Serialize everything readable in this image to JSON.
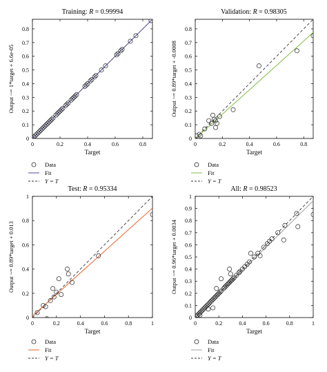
{
  "chart_data": [
    {
      "type": "scatter",
      "title": "Training: R = 0.99994",
      "title_prefix": "Training: ",
      "title_italic": "R",
      "title_value": " = 0.99994",
      "xlabel": "Target",
      "ylabel": "Output ~= 1*target + 6.6e-05",
      "xlim": [
        0,
        0.87
      ],
      "ylim": [
        0,
        0.87
      ],
      "xticks": [
        "0",
        "0.2",
        "0.4",
        "0.6",
        "0.8"
      ],
      "xtick_values": [
        0,
        0.2,
        0.4,
        0.6,
        0.8
      ],
      "yticks": [
        "0",
        "0.1",
        "0.2",
        "0.3",
        "0.4",
        "0.5",
        "0.6",
        "0.7",
        "0.8"
      ],
      "ytick_values": [
        0,
        0.1,
        0.2,
        0.3,
        0.4,
        0.5,
        0.6,
        0.7,
        0.8
      ],
      "fit": {
        "slope": 1.0,
        "intercept": 6.6e-05,
        "color": "#5b5ea6"
      },
      "identity_line": true,
      "grid": false,
      "legend": [
        {
          "label": "Data",
          "marker": "circle"
        },
        {
          "label": "Fit",
          "marker": "line",
          "color": "#5b5ea6"
        },
        {
          "label": "Y = T",
          "marker": "dashed"
        }
      ],
      "x": [
        0.01,
        0.02,
        0.03,
        0.04,
        0.05,
        0.06,
        0.07,
        0.08,
        0.09,
        0.1,
        0.11,
        0.12,
        0.13,
        0.14,
        0.15,
        0.17,
        0.18,
        0.19,
        0.2,
        0.21,
        0.22,
        0.24,
        0.25,
        0.26,
        0.28,
        0.29,
        0.3,
        0.31,
        0.32,
        0.38,
        0.39,
        0.4,
        0.42,
        0.43,
        0.45,
        0.46,
        0.5,
        0.53,
        0.61,
        0.62,
        0.64,
        0.65,
        0.71,
        0.75,
        0.86
      ],
      "y": [
        0.01,
        0.02,
        0.03,
        0.04,
        0.05,
        0.06,
        0.07,
        0.08,
        0.09,
        0.1,
        0.11,
        0.12,
        0.13,
        0.14,
        0.15,
        0.17,
        0.18,
        0.19,
        0.2,
        0.21,
        0.22,
        0.24,
        0.25,
        0.26,
        0.28,
        0.29,
        0.3,
        0.31,
        0.32,
        0.38,
        0.39,
        0.4,
        0.42,
        0.43,
        0.45,
        0.46,
        0.5,
        0.53,
        0.61,
        0.62,
        0.64,
        0.65,
        0.71,
        0.75,
        0.86
      ]
    },
    {
      "type": "scatter",
      "title": "Validation: R = 0.98305",
      "title_prefix": "Validation: ",
      "title_italic": "R",
      "title_value": " = 0.98305",
      "xlabel": "Target",
      "ylabel": "Output ~= 0.89*target + -0.0008",
      "xlim": [
        0,
        0.87
      ],
      "ylim": [
        0,
        0.87
      ],
      "xticks": [
        "0",
        "0.2",
        "0.4",
        "0.6",
        "0.8"
      ],
      "xtick_values": [
        0,
        0.2,
        0.4,
        0.6,
        0.8
      ],
      "yticks": [
        "0",
        "0.1",
        "0.2",
        "0.3",
        "0.4",
        "0.5",
        "0.6",
        "0.7",
        "0.8"
      ],
      "ytick_values": [
        0,
        0.1,
        0.2,
        0.3,
        0.4,
        0.5,
        0.6,
        0.7,
        0.8
      ],
      "fit": {
        "slope": 0.89,
        "intercept": -0.0008,
        "color": "#8cc152"
      },
      "identity_line": true,
      "grid": false,
      "legend": [
        {
          "label": "Data",
          "marker": "circle"
        },
        {
          "label": "Fit",
          "marker": "line",
          "color": "#8cc152"
        },
        {
          "label": "Y = T",
          "marker": "dashed"
        }
      ],
      "x": [
        0.01,
        0.03,
        0.04,
        0.07,
        0.1,
        0.12,
        0.13,
        0.14,
        0.15,
        0.15,
        0.16,
        0.18,
        0.28,
        0.47,
        0.75,
        0.87
      ],
      "y": [
        0.02,
        0.03,
        0.02,
        0.07,
        0.13,
        0.11,
        0.17,
        0.14,
        0.08,
        0.13,
        0.11,
        0.16,
        0.21,
        0.53,
        0.64,
        0.75
      ]
    },
    {
      "type": "scatter",
      "title": "Test: R = 0.95334",
      "title_prefix": "Test: ",
      "title_italic": "R",
      "title_value": " = 0.95334",
      "xlabel": "Target",
      "ylabel": "Output ~= 0.89*target + 0.013",
      "xlim": [
        0,
        1
      ],
      "ylim": [
        0,
        1
      ],
      "xticks": [
        "0",
        "0.2",
        "0.4",
        "0.6",
        "0.8",
        "1"
      ],
      "xtick_values": [
        0,
        0.2,
        0.4,
        0.6,
        0.8,
        1
      ],
      "yticks": [
        "0",
        "0.2",
        "0.4",
        "0.6",
        "0.8",
        "1"
      ],
      "ytick_values": [
        0,
        0.2,
        0.4,
        0.6,
        0.8,
        1
      ],
      "fit": {
        "slope": 0.89,
        "intercept": 0.013,
        "color": "#e8703a"
      },
      "identity_line": true,
      "grid": false,
      "legend": [
        {
          "label": "Data",
          "marker": "circle"
        },
        {
          "label": "Fit",
          "marker": "line",
          "color": "#e8703a"
        },
        {
          "label": "Y = T",
          "marker": "dashed"
        }
      ],
      "x": [
        0.04,
        0.09,
        0.11,
        0.12,
        0.15,
        0.17,
        0.18,
        0.2,
        0.22,
        0.24,
        0.29,
        0.3,
        0.33,
        0.55,
        1.0
      ],
      "y": [
        0.04,
        0.1,
        0.09,
        -0.01,
        0.14,
        0.24,
        0.17,
        0.21,
        0.32,
        0.19,
        0.4,
        0.36,
        0.29,
        0.51,
        0.85
      ]
    },
    {
      "type": "scatter",
      "title": "All: R = 0.98523",
      "title_prefix": "All: ",
      "title_italic": "R",
      "title_value": " = 0.98523",
      "xlabel": "Target",
      "ylabel": "Output ~= 0.96*target + 0.0034",
      "xlim": [
        0,
        1
      ],
      "ylim": [
        0,
        1
      ],
      "xticks": [
        "0",
        "0.2",
        "0.4",
        "0.6",
        "0.8",
        "1"
      ],
      "xtick_values": [
        0,
        0.2,
        0.4,
        0.6,
        0.8,
        1
      ],
      "yticks": [
        "0",
        "0.1",
        "0.2",
        "0.3",
        "0.4",
        "0.5",
        "0.6",
        "0.7",
        "0.8",
        "0.9",
        "1"
      ],
      "ytick_values": [
        0,
        0.1,
        0.2,
        0.3,
        0.4,
        0.5,
        0.6,
        0.7,
        0.8,
        0.9,
        1
      ],
      "fit": {
        "slope": 0.96,
        "intercept": 0.0034,
        "color": "#aaaaaa"
      },
      "identity_line": true,
      "grid": false,
      "legend": [
        {
          "label": "Data",
          "marker": "circle"
        },
        {
          "label": "Fit",
          "marker": "line",
          "color": "#aaaaaa"
        },
        {
          "label": "Y = T",
          "marker": "dashed"
        }
      ],
      "x": [
        0.01,
        0.02,
        0.03,
        0.04,
        0.05,
        0.06,
        0.07,
        0.08,
        0.09,
        0.1,
        0.11,
        0.12,
        0.13,
        0.14,
        0.15,
        0.16,
        0.17,
        0.18,
        0.19,
        0.2,
        0.21,
        0.22,
        0.24,
        0.25,
        0.26,
        0.27,
        0.28,
        0.29,
        0.3,
        0.31,
        0.32,
        0.33,
        0.35,
        0.37,
        0.38,
        0.4,
        0.42,
        0.44,
        0.46,
        0.5,
        0.53,
        0.55,
        0.58,
        0.61,
        0.63,
        0.65,
        0.7,
        0.75,
        0.76,
        0.86,
        0.87,
        1.0,
        0.04,
        0.11,
        0.15,
        0.18,
        0.22,
        0.29,
        0.3,
        0.47
      ],
      "y": [
        0.01,
        0.02,
        0.03,
        0.04,
        0.05,
        0.06,
        0.07,
        0.08,
        0.09,
        0.1,
        0.11,
        0.12,
        0.13,
        0.14,
        0.15,
        0.16,
        0.17,
        0.18,
        0.19,
        0.2,
        0.21,
        0.22,
        0.24,
        0.25,
        0.26,
        0.27,
        0.28,
        0.29,
        0.3,
        0.31,
        0.32,
        0.33,
        0.35,
        0.37,
        0.38,
        0.4,
        0.42,
        0.44,
        0.46,
        0.5,
        0.53,
        0.51,
        0.58,
        0.61,
        0.63,
        0.65,
        0.7,
        0.64,
        0.76,
        0.86,
        0.75,
        0.85,
        0.02,
        0.07,
        0.08,
        0.24,
        0.32,
        0.4,
        0.36,
        0.53
      ]
    }
  ]
}
